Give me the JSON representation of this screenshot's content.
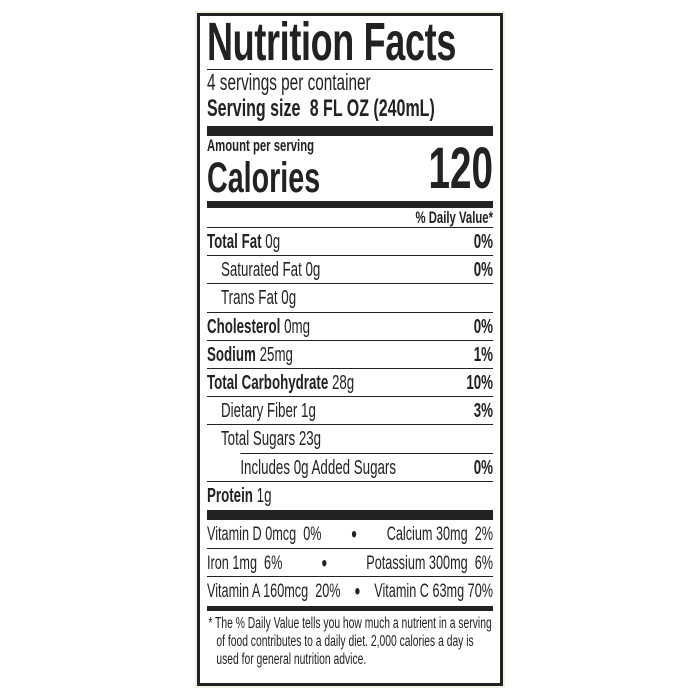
{
  "title": "Nutrition Facts",
  "servings_per_container": "4 servings per container",
  "serving_size_label": "Serving size",
  "serving_size_value": "8 FL OZ (240mL)",
  "amount_per_serving": "Amount per serving",
  "calories_label": "Calories",
  "calories_value": "120",
  "daily_value_header": "% Daily Value*",
  "nutrients": [
    {
      "name": "Total Fat",
      "amount": "0g",
      "dv": "0%"
    },
    {
      "name": "Saturated Fat",
      "amount": "0g",
      "dv": "0%"
    },
    {
      "name": "Trans Fat",
      "amount": "0g",
      "dv": ""
    },
    {
      "name": "Cholesterol",
      "amount": "0mg",
      "dv": "0%"
    },
    {
      "name": "Sodium",
      "amount": "25mg",
      "dv": "1%"
    },
    {
      "name": "Total Carbohydrate",
      "amount": "28g",
      "dv": "10%"
    },
    {
      "name": "Dietary Fiber",
      "amount": "1g",
      "dv": "3%"
    },
    {
      "name": "Total Sugars",
      "amount": "23g",
      "dv": ""
    },
    {
      "name": "Includes 0g Added Sugars",
      "amount": "",
      "dv": "0%"
    },
    {
      "name": "Protein",
      "amount": "1g",
      "dv": ""
    }
  ],
  "vitamins": [
    {
      "left": "Vitamin D 0mcg  0%",
      "right": "Calcium 30mg  2%"
    },
    {
      "left": "Iron 1mg  6%",
      "right": "Potassium 300mg  6%"
    },
    {
      "left": "Vitamin A 160mcg  20%",
      "right": "Vitamin C 63mg 70%"
    }
  ],
  "bullet": "•",
  "footnote": "* The % Daily Value tells you how much a nutrient in a serving of food contributes to a daily diet. 2,000 calories a day is used for general nutrition advice."
}
